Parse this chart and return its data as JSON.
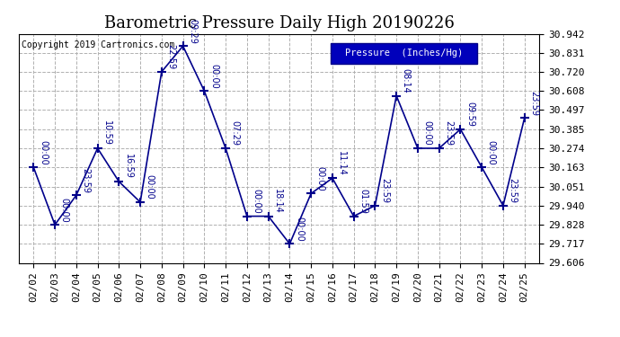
{
  "title": "Barometric Pressure Daily High 20190226",
  "copyright": "Copyright 2019 Cartronics.com",
  "legend_label": "Pressure  (Inches/Hg)",
  "ylim": [
    29.606,
    30.942
  ],
  "yticks": [
    29.606,
    29.717,
    29.828,
    29.94,
    30.051,
    30.163,
    30.274,
    30.385,
    30.497,
    30.608,
    30.72,
    30.831,
    30.942
  ],
  "dates": [
    "02/02",
    "02/03",
    "02/04",
    "02/05",
    "02/06",
    "02/07",
    "02/08",
    "02/09",
    "02/10",
    "02/11",
    "02/12",
    "02/13",
    "02/14",
    "02/15",
    "02/16",
    "02/17",
    "02/18",
    "02/19",
    "02/20",
    "02/21",
    "02/22",
    "02/23",
    "02/24",
    "02/25"
  ],
  "values": [
    30.163,
    29.828,
    30.0,
    30.274,
    30.08,
    29.96,
    30.72,
    30.87,
    30.608,
    30.274,
    29.878,
    29.878,
    29.717,
    30.01,
    30.1,
    29.878,
    29.94,
    30.58,
    30.274,
    30.274,
    30.385,
    30.163,
    29.94,
    30.45
  ],
  "time_labels": [
    "00:00",
    "00:00",
    "23:59",
    "10:59",
    "16:59",
    "00:00",
    "22:59",
    "09:29",
    "00:00",
    "07:29",
    "00:00",
    "18:14",
    "00:00",
    "00:00",
    "11:14",
    "01:59",
    "23:59",
    "08:14",
    "00:00",
    "23:59",
    "09:59",
    "00:00",
    "23:59",
    "23:59"
  ],
  "line_color": "#00008B",
  "marker": "+",
  "marker_size": 7,
  "marker_linewidth": 1.5,
  "line_width": 1.2,
  "bg_color": "#ffffff",
  "grid_color": "#b0b0b0",
  "title_fontsize": 13,
  "tick_fontsize": 8,
  "annot_fontsize": 7,
  "legend_bg": "#0000bb",
  "legend_fg": "#ffffff",
  "legend_border": "#000088"
}
